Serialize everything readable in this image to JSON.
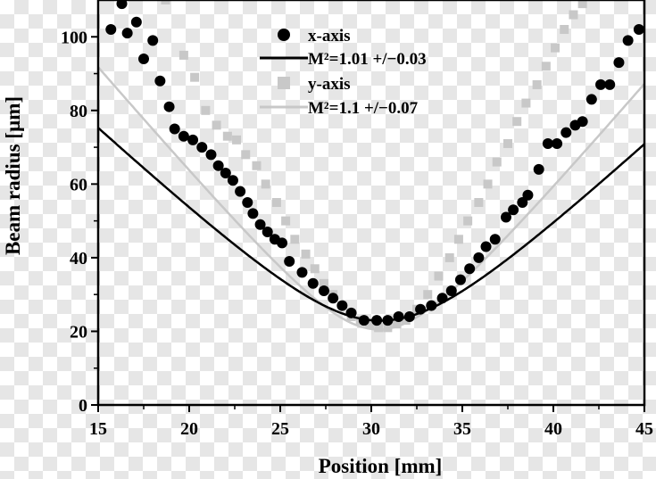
{
  "chart_data": {
    "type": "scatter",
    "xlabel": "Position [mm]",
    "ylabel": "Beam radius [µm]",
    "xlim": [
      15,
      45
    ],
    "ylim": [
      0,
      110
    ],
    "xticks": [
      15,
      20,
      25,
      30,
      35,
      40,
      45
    ],
    "yticks": [
      0,
      20,
      40,
      60,
      80,
      100
    ],
    "grid": false,
    "legend_position": "top-center",
    "colors": {
      "x_series": "#000000",
      "y_series": "#c8c8c8",
      "axis": "#000000"
    },
    "series": [
      {
        "name": "x-axis",
        "marker": "circle",
        "points": [
          [
            15.7,
            102
          ],
          [
            16.3,
            109
          ],
          [
            16.6,
            101
          ],
          [
            17.1,
            104
          ],
          [
            17.5,
            94
          ],
          [
            18,
            99
          ],
          [
            18.4,
            88
          ],
          [
            18.9,
            81
          ],
          [
            19.2,
            75
          ],
          [
            19.7,
            73
          ],
          [
            20.2,
            72
          ],
          [
            20.7,
            70
          ],
          [
            21.2,
            68
          ],
          [
            21.6,
            65
          ],
          [
            22,
            63
          ],
          [
            22.4,
            61
          ],
          [
            22.8,
            58
          ],
          [
            23.2,
            55
          ],
          [
            23.5,
            52
          ],
          [
            23.9,
            49
          ],
          [
            24.3,
            47
          ],
          [
            24.7,
            45
          ],
          [
            25.1,
            44
          ],
          [
            25.5,
            39
          ],
          [
            26.2,
            36
          ],
          [
            26.8,
            33
          ],
          [
            27.4,
            31
          ],
          [
            27.9,
            29
          ],
          [
            28.4,
            27
          ],
          [
            28.9,
            25
          ],
          [
            29.6,
            23
          ],
          [
            30.3,
            23
          ],
          [
            30.9,
            23
          ],
          [
            31.5,
            24
          ],
          [
            32.1,
            24
          ],
          [
            32.7,
            26
          ],
          [
            33.3,
            27
          ],
          [
            33.9,
            29
          ],
          [
            34.4,
            31
          ],
          [
            34.9,
            34
          ],
          [
            35.4,
            37
          ],
          [
            35.9,
            40
          ],
          [
            36.3,
            43
          ],
          [
            36.8,
            45
          ],
          [
            37.4,
            51
          ],
          [
            37.8,
            53
          ],
          [
            38.3,
            55
          ],
          [
            38.6,
            57
          ],
          [
            39.2,
            64
          ],
          [
            39.7,
            71
          ],
          [
            40.2,
            71
          ],
          [
            40.7,
            74
          ],
          [
            41.2,
            76
          ],
          [
            41.6,
            77
          ],
          [
            42.1,
            83
          ],
          [
            42.6,
            87
          ],
          [
            43.1,
            87
          ],
          [
            43.6,
            93
          ],
          [
            44.1,
            99
          ],
          [
            44.7,
            102
          ]
        ]
      },
      {
        "name": "M²=1.01 +/−0.03",
        "type": "line",
        "fit_of": "x-axis",
        "w0": 22.9,
        "z0": 30.5,
        "zR": 4.95
      },
      {
        "name": "y-axis",
        "marker": "square",
        "points": [
          [
            18.7,
            110
          ],
          [
            19.7,
            95
          ],
          [
            20.3,
            89
          ],
          [
            20.9,
            80
          ],
          [
            21.5,
            76
          ],
          [
            22.1,
            73
          ],
          [
            22.6,
            72
          ],
          [
            23.1,
            68
          ],
          [
            23.7,
            65
          ],
          [
            24.2,
            60
          ],
          [
            24.8,
            55
          ],
          [
            25.3,
            50
          ],
          [
            25.8,
            45
          ],
          [
            26.4,
            41
          ],
          [
            26.9,
            37
          ],
          [
            27.4,
            33
          ],
          [
            27.9,
            30
          ],
          [
            28.4,
            27
          ],
          [
            28.9,
            24
          ],
          [
            29.4,
            23
          ],
          [
            29.9,
            22
          ],
          [
            30.4,
            21
          ],
          [
            30.9,
            21
          ],
          [
            31.4,
            22
          ],
          [
            31.9,
            23
          ],
          [
            32.5,
            26
          ],
          [
            33.1,
            30
          ],
          [
            33.7,
            35
          ],
          [
            34.3,
            40
          ],
          [
            34.8,
            45
          ],
          [
            35.3,
            50
          ],
          [
            35.9,
            55
          ],
          [
            36.4,
            60
          ],
          [
            36.9,
            66
          ],
          [
            37.5,
            71
          ],
          [
            38,
            77
          ],
          [
            38.5,
            82
          ],
          [
            39.1,
            87
          ],
          [
            39.6,
            92
          ],
          [
            40.1,
            97
          ],
          [
            40.6,
            102
          ],
          [
            41.1,
            106
          ],
          [
            41.6,
            109
          ]
        ]
      },
      {
        "name": "M²=1.1 +/−0.07",
        "type": "line",
        "fit_of": "y-axis",
        "w0": 20.5,
        "z0": 30.4,
        "zR": 3.53
      }
    ]
  }
}
